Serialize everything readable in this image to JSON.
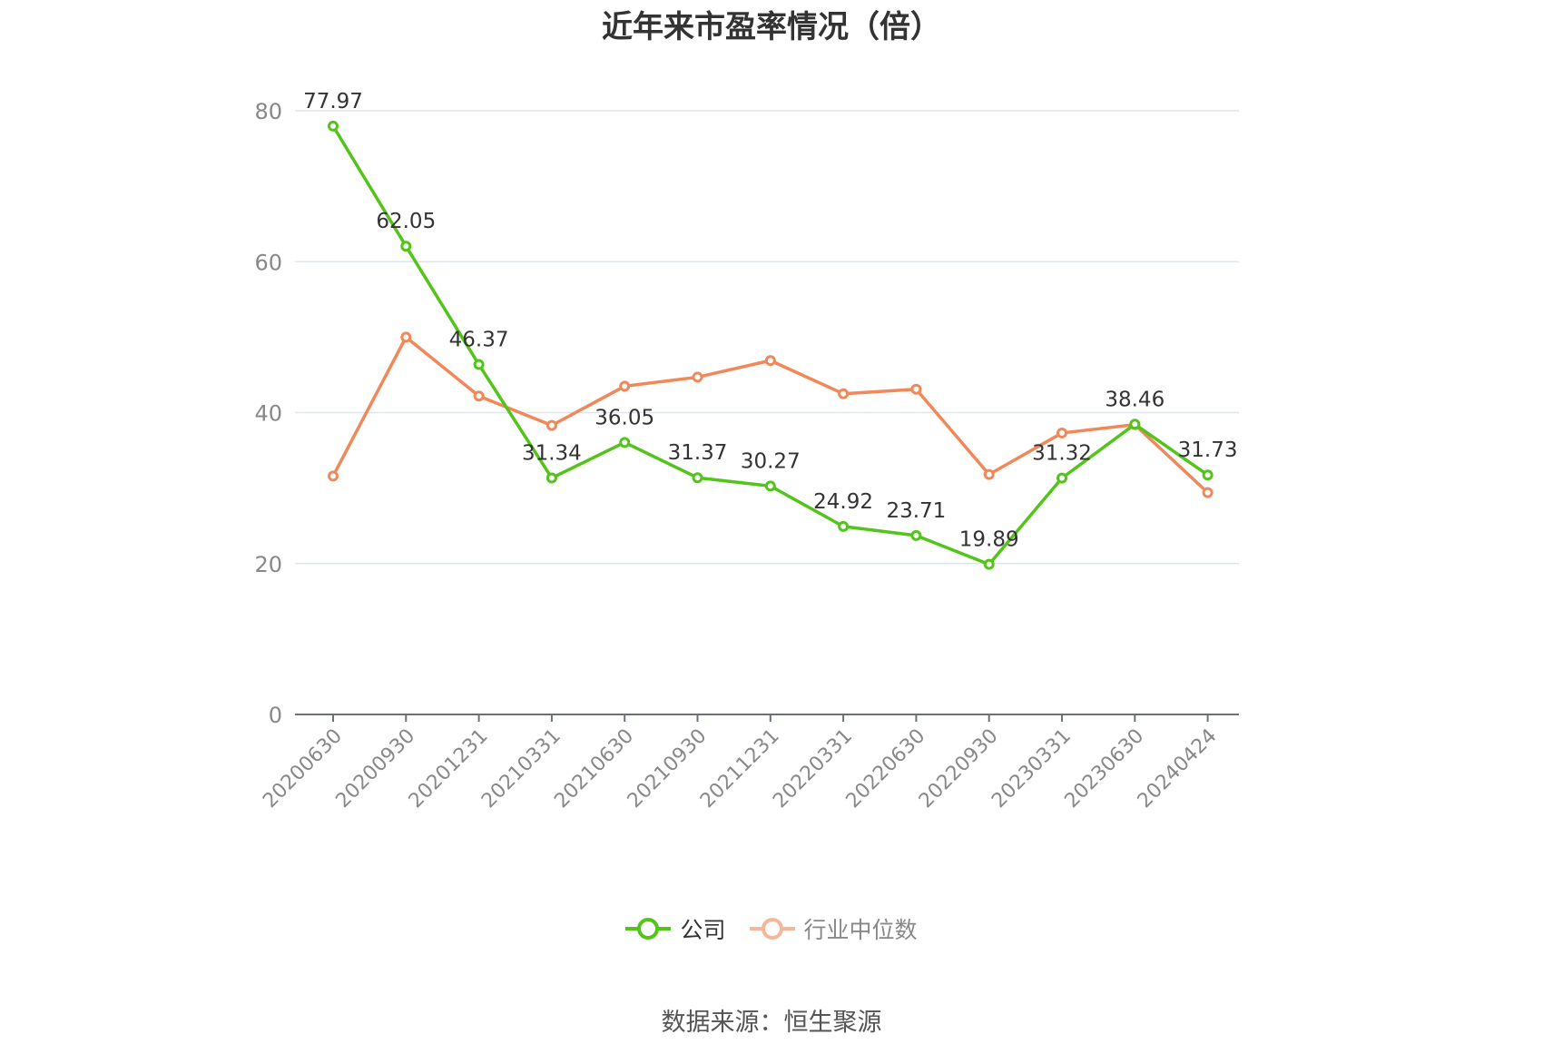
{
  "chart_data": {
    "type": "line",
    "title": "近年来市盈率情况（倍）",
    "categories": [
      "20200630",
      "20200930",
      "20201231",
      "20210331",
      "20210630",
      "20210930",
      "20211231",
      "20220331",
      "20220630",
      "20220930",
      "20230331",
      "20230630",
      "20240424"
    ],
    "series": [
      {
        "name": "公司",
        "color": "#52c41a",
        "values": [
          77.97,
          62.05,
          46.37,
          31.34,
          36.05,
          31.37,
          30.27,
          24.92,
          23.71,
          19.89,
          31.32,
          38.46,
          31.73
        ],
        "labels": [
          "77.97",
          "62.05",
          "46.37",
          "31.34",
          "36.05",
          "31.37",
          "30.27",
          "24.92",
          "23.71",
          "19.89",
          "31.32",
          "38.46",
          "31.73"
        ]
      },
      {
        "name": "行业中位数",
        "color": "#f0885a",
        "values": [
          31.6,
          50.0,
          42.2,
          38.3,
          43.5,
          44.7,
          46.9,
          42.5,
          43.1,
          31.8,
          37.3,
          38.4,
          29.4
        ]
      }
    ],
    "yticks": [
      "0",
      "20",
      "40",
      "60",
      "80"
    ],
    "ylim": [
      0,
      80
    ],
    "grid": true,
    "legend_position": "bottom"
  },
  "source": "数据来源：恒生聚源"
}
